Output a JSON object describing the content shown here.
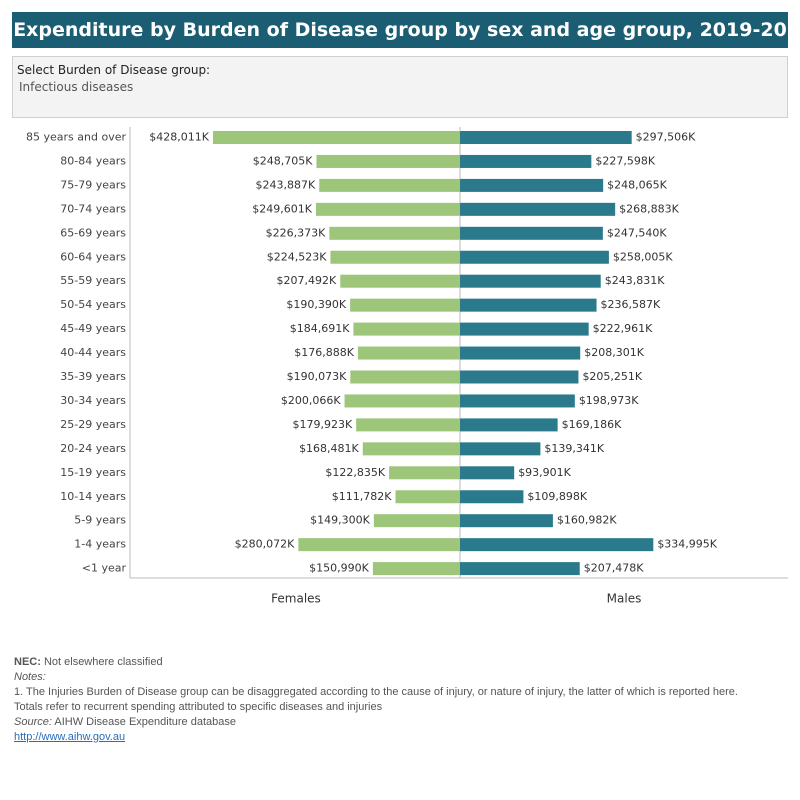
{
  "header": {
    "title": "Expenditure by Burden of Disease group by sex and age group, 2019-20"
  },
  "filter": {
    "label": "Select Burden of Disease group:",
    "value": "Infectious diseases"
  },
  "chart_data": {
    "type": "bar",
    "categories": [
      "85 years and over",
      "80-84 years",
      "75-79 years",
      "70-74 years",
      "65-69 years",
      "60-64 years",
      "55-59 years",
      "50-54 years",
      "45-49 years",
      "40-44 years",
      "35-39 years",
      "30-34 years",
      "25-29 years",
      "20-24 years",
      "15-19 years",
      "10-14 years",
      "5-9 years",
      "1-4 years",
      "<1 year"
    ],
    "series": [
      {
        "name": "Females",
        "color": "#9dc67a",
        "values": [
          428011,
          248705,
          243887,
          249601,
          226373,
          224523,
          207492,
          190390,
          184691,
          176888,
          190073,
          200066,
          179923,
          168481,
          122835,
          111782,
          149300,
          280072,
          150990
        ],
        "value_labels": [
          "$428,011K",
          "$248,705K",
          "$243,887K",
          "$249,601K",
          "$226,373K",
          "$224,523K",
          "$207,492K",
          "$190,390K",
          "$184,691K",
          "$176,888K",
          "$190,073K",
          "$200,066K",
          "$179,923K",
          "$168,481K",
          "$122,835K",
          "$111,782K",
          "$149,300K",
          "$280,072K",
          "$150,990K"
        ]
      },
      {
        "name": "Males",
        "color": "#2a7a8c",
        "values": [
          297506,
          227598,
          248065,
          268883,
          247540,
          258005,
          243831,
          236587,
          222961,
          208301,
          205251,
          198973,
          169186,
          139341,
          93901,
          109898,
          160982,
          334995,
          207478
        ],
        "value_labels": [
          "$297,506K",
          "$227,598K",
          "$248,065K",
          "$268,883K",
          "$247,540K",
          "$258,005K",
          "$243,831K",
          "$236,587K",
          "$222,961K",
          "$208,301K",
          "$205,251K",
          "$198,973K",
          "$169,186K",
          "$139,341K",
          "$93,901K",
          "$109,898K",
          "$160,982K",
          "$334,995K",
          "$207,478K"
        ]
      }
    ]
  },
  "footer": {
    "nec_term": "NEC:",
    "nec_text": "Not elsewhere classified",
    "notes_heading": "Notes:",
    "note_1": "1. The Injuries Burden of Disease group can be disaggregated according to the cause of injury, or nature of injury, the latter of which is reported here.",
    "note_2": "Totals refer to recurrent spending attributed to specific diseases and injuries",
    "source_term": "Source:",
    "source_text": "AIHW Disease Expenditure database",
    "link": "http://www.aihw.gov.au"
  }
}
